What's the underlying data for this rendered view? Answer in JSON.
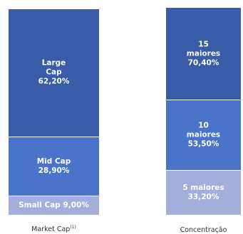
{
  "chart_data": [
    {
      "type": "bar",
      "stacked": true,
      "xlabel": "Market Cap",
      "xlabel_superscript": "(1)",
      "series": [
        {
          "name": "Small Cap",
          "values": [
            9.0
          ],
          "label_lines": [
            "Small Cap 9,00%"
          ],
          "color": "#a3aedb"
        },
        {
          "name": "Mid Cap",
          "values": [
            28.9
          ],
          "label_lines": [
            "Mid Cap",
            "28,90%"
          ],
          "color": "#4a74c9"
        },
        {
          "name": "Large Cap",
          "values": [
            62.2
          ],
          "label_lines": [
            "Large",
            "Cap",
            "62,20%"
          ],
          "color": "#3a5ba8"
        }
      ]
    },
    {
      "type": "bar",
      "stacked": true,
      "xlabel": "Concentração",
      "series": [
        {
          "name": "5 maiores",
          "values": [
            33.2
          ],
          "label_lines": [
            "5 maiores",
            "33,20%"
          ],
          "color": "#a3aedb"
        },
        {
          "name": "10 maiores",
          "values": [
            53.5
          ],
          "label_lines": [
            "10",
            "maiores",
            "53,50%"
          ],
          "color": "#4a74c9"
        },
        {
          "name": "15 maiores",
          "values": [
            70.4
          ],
          "label_lines": [
            "15",
            "maiores",
            "70,40%"
          ],
          "color": "#3a5ba8"
        }
      ]
    }
  ]
}
